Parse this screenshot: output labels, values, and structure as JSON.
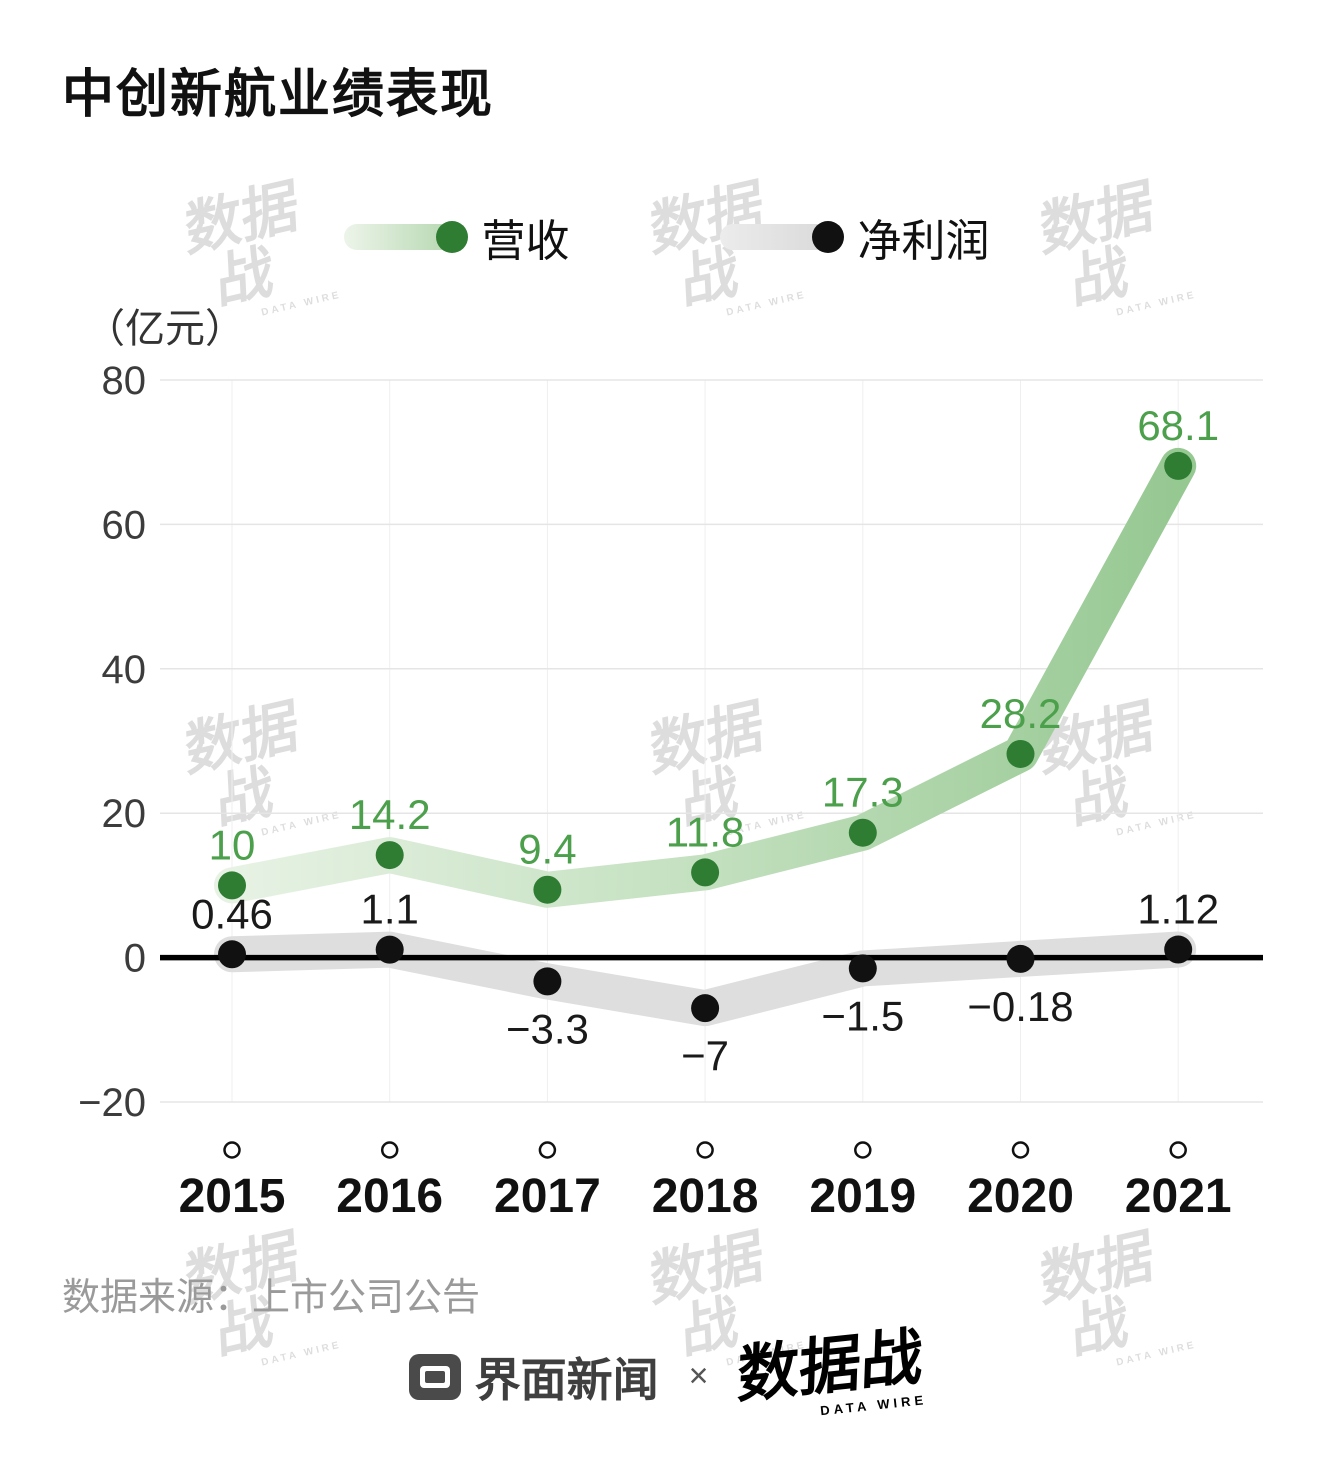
{
  "title": "中创新航业绩表现",
  "unit_label": "（亿元）",
  "legend": [
    {
      "label": "营收",
      "dot_color": "#2e7d32"
    },
    {
      "label": "净利润",
      "dot_color": "#111111"
    }
  ],
  "source": "数据来源：上市公司公告",
  "watermark": {
    "text": "数据战",
    "sub": "DATA WIRE"
  },
  "footer": {
    "jiemian_label": "界面新闻",
    "separator": "×",
    "datawire_label": "数据战",
    "datawire_sub": "DATA WIRE"
  },
  "chart_data": {
    "type": "line",
    "title": "中创新航业绩表现",
    "unit": "亿元",
    "categories": [
      "2015",
      "2016",
      "2017",
      "2018",
      "2019",
      "2020",
      "2021"
    ],
    "series": [
      {
        "name": "营收",
        "values": [
          10,
          14.2,
          9.4,
          11.8,
          17.3,
          28.2,
          68.1
        ],
        "labels": [
          "10",
          "14.2",
          "9.4",
          "11.8",
          "17.3",
          "28.2",
          "68.1"
        ],
        "dot_color": "#2e7d32",
        "label_color": "#4ca04b",
        "band_gradient": [
          "#e7f2e4",
          "#c3e0bf",
          "#96c892"
        ],
        "label_position": "above"
      },
      {
        "name": "净利润",
        "values": [
          0.46,
          1.1,
          -3.3,
          -7,
          -1.5,
          -0.18,
          1.12
        ],
        "labels": [
          "0.46",
          "1.1",
          "−3.3",
          "−7",
          "−1.5",
          "−0.18",
          "1.12"
        ],
        "dot_color": "#111111",
        "label_color": "#1a1a1a",
        "band_color": "#dedede",
        "label_position": "by-sign"
      }
    ],
    "ylim": [
      -20,
      80
    ],
    "yticks": [
      80,
      60,
      40,
      20,
      0,
      -20
    ],
    "ytick_labels": [
      "80",
      "60",
      "40",
      "20",
      "0",
      "−20"
    ],
    "grid": true,
    "legend_position": "top"
  }
}
